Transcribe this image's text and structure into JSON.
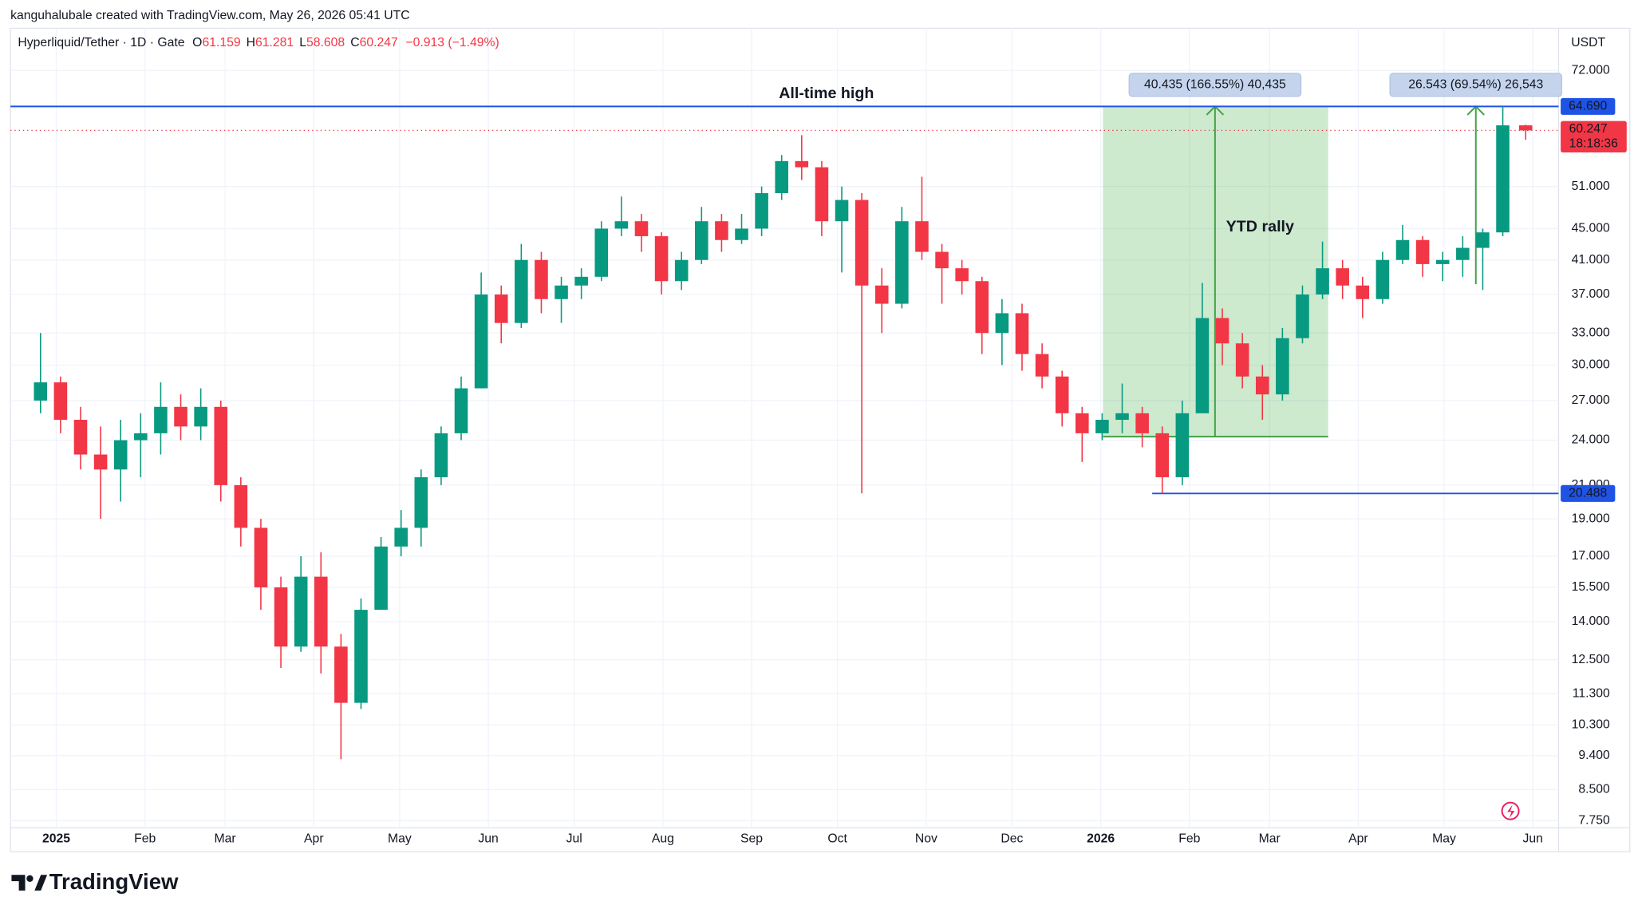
{
  "header": {
    "credit": "kanguhalubale created with TradingView.com, May 26, 2026 05:41 UTC",
    "symbol": "Hyperliquid/Tether · 1D · Gate",
    "o": "O",
    "h": "H",
    "l": "L",
    "c": "C",
    "change": "−0.913 (−1.49%)",
    "brand": "TradingView"
  },
  "chart_data": {
    "type": "candlestick",
    "currency": "USDT",
    "log_scale": true,
    "grid": true,
    "up_color": "#089981",
    "down_color": "#f23645",
    "xlim": [
      "2024-12-16",
      "2026-06-10"
    ],
    "xticks": [
      {
        "value": "2025-01-01",
        "label": "2025"
      },
      {
        "value": "2025-02-01",
        "label": "Feb"
      },
      {
        "value": "2025-03-01",
        "label": "Mar"
      },
      {
        "value": "2025-04-01",
        "label": "Apr"
      },
      {
        "value": "2025-05-01",
        "label": "May"
      },
      {
        "value": "2025-06-01",
        "label": "Jun"
      },
      {
        "value": "2025-07-01",
        "label": "Jul"
      },
      {
        "value": "2025-08-01",
        "label": "Aug"
      },
      {
        "value": "2025-09-01",
        "label": "Sep"
      },
      {
        "value": "2025-10-01",
        "label": "Oct"
      },
      {
        "value": "2025-11-01",
        "label": "Nov"
      },
      {
        "value": "2025-12-01",
        "label": "Dec"
      },
      {
        "value": "2026-01-01",
        "label": "2026"
      },
      {
        "value": "2026-02-01",
        "label": "Feb"
      },
      {
        "value": "2026-03-01",
        "label": "Mar"
      },
      {
        "value": "2026-04-01",
        "label": "Apr"
      },
      {
        "value": "2026-05-01",
        "label": "May"
      },
      {
        "value": "2026-06-01",
        "label": "Jun"
      }
    ],
    "ylim": [
      7.59,
      81.6
    ],
    "yticks": [
      {
        "value": 72,
        "label": "72.000"
      },
      {
        "value": 51,
        "label": "51.000"
      },
      {
        "value": 45,
        "label": "45.000"
      },
      {
        "value": 41,
        "label": "41.000"
      },
      {
        "value": 37,
        "label": "37.000"
      },
      {
        "value": 33,
        "label": "33.000"
      },
      {
        "value": 30,
        "label": "30.000"
      },
      {
        "value": 27,
        "label": "27.000"
      },
      {
        "value": 24,
        "label": "24.000"
      },
      {
        "value": 21,
        "label": "21.000"
      },
      {
        "value": 19,
        "label": "19.000"
      },
      {
        "value": 17,
        "label": "17.000"
      },
      {
        "value": 15.5,
        "label": "15.500"
      },
      {
        "value": 14,
        "label": "14.000"
      },
      {
        "value": 12.5,
        "label": "12.500"
      },
      {
        "value": 11.3,
        "label": "11.300"
      },
      {
        "value": 10.3,
        "label": "10.300"
      },
      {
        "value": 9.4,
        "label": "9.400"
      },
      {
        "value": 8.5,
        "label": "8.500"
      },
      {
        "value": 7.75,
        "label": "7.750"
      }
    ],
    "candles": [
      {
        "x": "2024-12-23",
        "open": 27,
        "high": 33,
        "low": 26,
        "close": 28.5
      },
      {
        "x": "2024-12-30",
        "open": 28.5,
        "high": 29,
        "low": 24.5,
        "close": 25.5
      },
      {
        "x": "2025-01-06",
        "open": 25.5,
        "high": 26.5,
        "low": 22,
        "close": 23
      },
      {
        "x": "2025-01-13",
        "open": 23,
        "high": 25,
        "low": 19,
        "close": 22
      },
      {
        "x": "2025-01-20",
        "open": 22,
        "high": 25.5,
        "low": 20,
        "close": 24
      },
      {
        "x": "2025-01-27",
        "open": 24,
        "high": 26,
        "low": 21.5,
        "close": 24.5
      },
      {
        "x": "2025-02-03",
        "open": 24.5,
        "high": 28.5,
        "low": 23,
        "close": 26.5
      },
      {
        "x": "2025-02-10",
        "open": 26.5,
        "high": 27.5,
        "low": 24,
        "close": 25
      },
      {
        "x": "2025-02-17",
        "open": 25,
        "high": 28,
        "low": 24,
        "close": 26.5
      },
      {
        "x": "2025-02-24",
        "open": 26.5,
        "high": 27,
        "low": 20,
        "close": 21
      },
      {
        "x": "2025-03-03",
        "open": 21,
        "high": 21.5,
        "low": 17.5,
        "close": 18.5
      },
      {
        "x": "2025-03-10",
        "open": 18.5,
        "high": 19,
        "low": 14.5,
        "close": 15.5
      },
      {
        "x": "2025-03-17",
        "open": 15.5,
        "high": 16,
        "low": 12.2,
        "close": 13
      },
      {
        "x": "2025-03-24",
        "open": 13,
        "high": 17,
        "low": 12.8,
        "close": 16
      },
      {
        "x": "2025-03-31",
        "open": 16,
        "high": 17.2,
        "low": 12,
        "close": 13
      },
      {
        "x": "2025-04-07",
        "open": 13,
        "high": 13.5,
        "low": 9.3,
        "close": 11
      },
      {
        "x": "2025-04-14",
        "open": 11,
        "high": 15,
        "low": 10.8,
        "close": 14.5
      },
      {
        "x": "2025-04-21",
        "open": 14.5,
        "high": 18,
        "low": 14.5,
        "close": 17.5
      },
      {
        "x": "2025-04-28",
        "open": 17.5,
        "high": 19.5,
        "low": 17,
        "close": 18.5
      },
      {
        "x": "2025-05-05",
        "open": 18.5,
        "high": 22,
        "low": 17.5,
        "close": 21.5
      },
      {
        "x": "2025-05-12",
        "open": 21.5,
        "high": 25,
        "low": 21,
        "close": 24.5
      },
      {
        "x": "2025-05-19",
        "open": 24.5,
        "high": 29,
        "low": 24,
        "close": 28
      },
      {
        "x": "2025-05-26",
        "open": 28,
        "high": 39.5,
        "low": 28,
        "close": 37
      },
      {
        "x": "2025-06-02",
        "open": 37,
        "high": 38,
        "low": 32,
        "close": 34
      },
      {
        "x": "2025-06-09",
        "open": 34,
        "high": 43,
        "low": 33.5,
        "close": 41
      },
      {
        "x": "2025-06-16",
        "open": 41,
        "high": 42,
        "low": 35,
        "close": 36.5
      },
      {
        "x": "2025-06-23",
        "open": 36.5,
        "high": 39,
        "low": 34,
        "close": 38
      },
      {
        "x": "2025-06-30",
        "open": 38,
        "high": 40,
        "low": 36.5,
        "close": 39
      },
      {
        "x": "2025-07-07",
        "open": 39,
        "high": 46,
        "low": 38.5,
        "close": 45
      },
      {
        "x": "2025-07-14",
        "open": 45,
        "high": 49.5,
        "low": 44,
        "close": 46
      },
      {
        "x": "2025-07-21",
        "open": 46,
        "high": 47,
        "low": 42,
        "close": 44
      },
      {
        "x": "2025-07-28",
        "open": 44,
        "high": 44.5,
        "low": 37,
        "close": 38.5
      },
      {
        "x": "2025-08-04",
        "open": 38.5,
        "high": 42,
        "low": 37.5,
        "close": 41
      },
      {
        "x": "2025-08-11",
        "open": 41,
        "high": 48,
        "low": 40.5,
        "close": 46
      },
      {
        "x": "2025-08-18",
        "open": 46,
        "high": 47,
        "low": 42,
        "close": 43.5
      },
      {
        "x": "2025-08-25",
        "open": 43.5,
        "high": 47,
        "low": 43,
        "close": 45
      },
      {
        "x": "2025-09-01",
        "open": 45,
        "high": 51,
        "low": 44,
        "close": 50
      },
      {
        "x": "2025-09-08",
        "open": 50,
        "high": 56,
        "low": 49,
        "close": 55
      },
      {
        "x": "2025-09-15",
        "open": 55,
        "high": 59.4,
        "low": 52,
        "close": 54
      },
      {
        "x": "2025-09-22",
        "open": 54,
        "high": 55,
        "low": 44,
        "close": 46
      },
      {
        "x": "2025-09-29",
        "open": 46,
        "high": 51,
        "low": 39.5,
        "close": 49
      },
      {
        "x": "2025-10-06",
        "open": 49,
        "high": 50,
        "low": 20.5,
        "close": 38
      },
      {
        "x": "2025-10-13",
        "open": 38,
        "high": 40,
        "low": 33,
        "close": 36
      },
      {
        "x": "2025-10-20",
        "open": 36,
        "high": 48,
        "low": 35.5,
        "close": 46
      },
      {
        "x": "2025-10-27",
        "open": 46,
        "high": 52.5,
        "low": 41,
        "close": 42
      },
      {
        "x": "2025-11-03",
        "open": 42,
        "high": 43,
        "low": 36,
        "close": 40
      },
      {
        "x": "2025-11-10",
        "open": 40,
        "high": 41,
        "low": 37,
        "close": 38.5
      },
      {
        "x": "2025-11-17",
        "open": 38.5,
        "high": 39,
        "low": 31,
        "close": 33
      },
      {
        "x": "2025-11-24",
        "open": 33,
        "high": 36.5,
        "low": 30,
        "close": 35
      },
      {
        "x": "2025-12-01",
        "open": 35,
        "high": 36,
        "low": 29.5,
        "close": 31
      },
      {
        "x": "2025-12-08",
        "open": 31,
        "high": 32,
        "low": 28,
        "close": 29
      },
      {
        "x": "2025-12-15",
        "open": 29,
        "high": 29.5,
        "low": 25,
        "close": 26
      },
      {
        "x": "2025-12-22",
        "open": 26,
        "high": 26.5,
        "low": 22.5,
        "close": 24.5
      },
      {
        "x": "2025-12-29",
        "open": 24.5,
        "high": 26,
        "low": 24,
        "close": 25.5
      },
      {
        "x": "2026-01-05",
        "open": 25.5,
        "high": 28.4,
        "low": 24.5,
        "close": 26
      },
      {
        "x": "2026-01-12",
        "open": 26,
        "high": 26.5,
        "low": 23.5,
        "close": 24.5
      },
      {
        "x": "2026-01-19",
        "open": 24.5,
        "high": 25,
        "low": 20.488,
        "close": 21.5
      },
      {
        "x": "2026-01-26",
        "open": 21.5,
        "high": 27,
        "low": 21,
        "close": 26
      },
      {
        "x": "2026-02-02",
        "open": 26,
        "high": 38.3,
        "low": 26,
        "close": 34.5
      },
      {
        "x": "2026-02-09",
        "open": 34.5,
        "high": 35.5,
        "low": 30,
        "close": 32
      },
      {
        "x": "2026-02-16",
        "open": 32,
        "high": 33,
        "low": 28,
        "close": 29
      },
      {
        "x": "2026-02-23",
        "open": 29,
        "high": 30,
        "low": 25.5,
        "close": 27.5
      },
      {
        "x": "2026-03-02",
        "open": 27.5,
        "high": 33.5,
        "low": 27,
        "close": 32.5
      },
      {
        "x": "2026-03-09",
        "open": 32.5,
        "high": 38,
        "low": 32,
        "close": 37
      },
      {
        "x": "2026-03-16",
        "open": 37,
        "high": 43.3,
        "low": 36.5,
        "close": 40
      },
      {
        "x": "2026-03-23",
        "open": 40,
        "high": 41,
        "low": 36.5,
        "close": 38
      },
      {
        "x": "2026-03-30",
        "open": 38,
        "high": 39,
        "low": 34.5,
        "close": 36.5
      },
      {
        "x": "2026-04-06",
        "open": 36.5,
        "high": 42,
        "low": 36,
        "close": 41
      },
      {
        "x": "2026-04-13",
        "open": 41,
        "high": 45.5,
        "low": 40.5,
        "close": 43.5
      },
      {
        "x": "2026-04-20",
        "open": 43.5,
        "high": 44,
        "low": 39,
        "close": 40.5
      },
      {
        "x": "2026-04-27",
        "open": 40.5,
        "high": 42,
        "low": 38.5,
        "close": 41
      },
      {
        "x": "2026-05-04",
        "open": 41,
        "high": 44,
        "low": 39,
        "close": 42.5
      },
      {
        "x": "2026-05-11",
        "open": 42.5,
        "high": 45,
        "low": 37.5,
        "close": 44.5
      },
      {
        "x": "2026-05-18",
        "open": 44.5,
        "high": 64.69,
        "low": 44,
        "close": 61.16
      },
      {
        "x": "2026-05-26",
        "open": 61.159,
        "high": 61.281,
        "low": 58.608,
        "close": 60.247
      }
    ],
    "countdown": "18:18:36",
    "levels": [
      {
        "value": 64.69,
        "label": "64.690",
        "name": "All-time high",
        "color": "#1e53e5"
      },
      {
        "value": 20.488,
        "label": "20.488",
        "color": "#1e53e5"
      }
    ],
    "ranges": [
      {
        "value": 40.435,
        "label": "40.435 (166.55%) 40,435",
        "name": "YTD rally"
      },
      {
        "value": 26.543,
        "label": "26.543 (69.54%) 26,543"
      }
    ]
  }
}
